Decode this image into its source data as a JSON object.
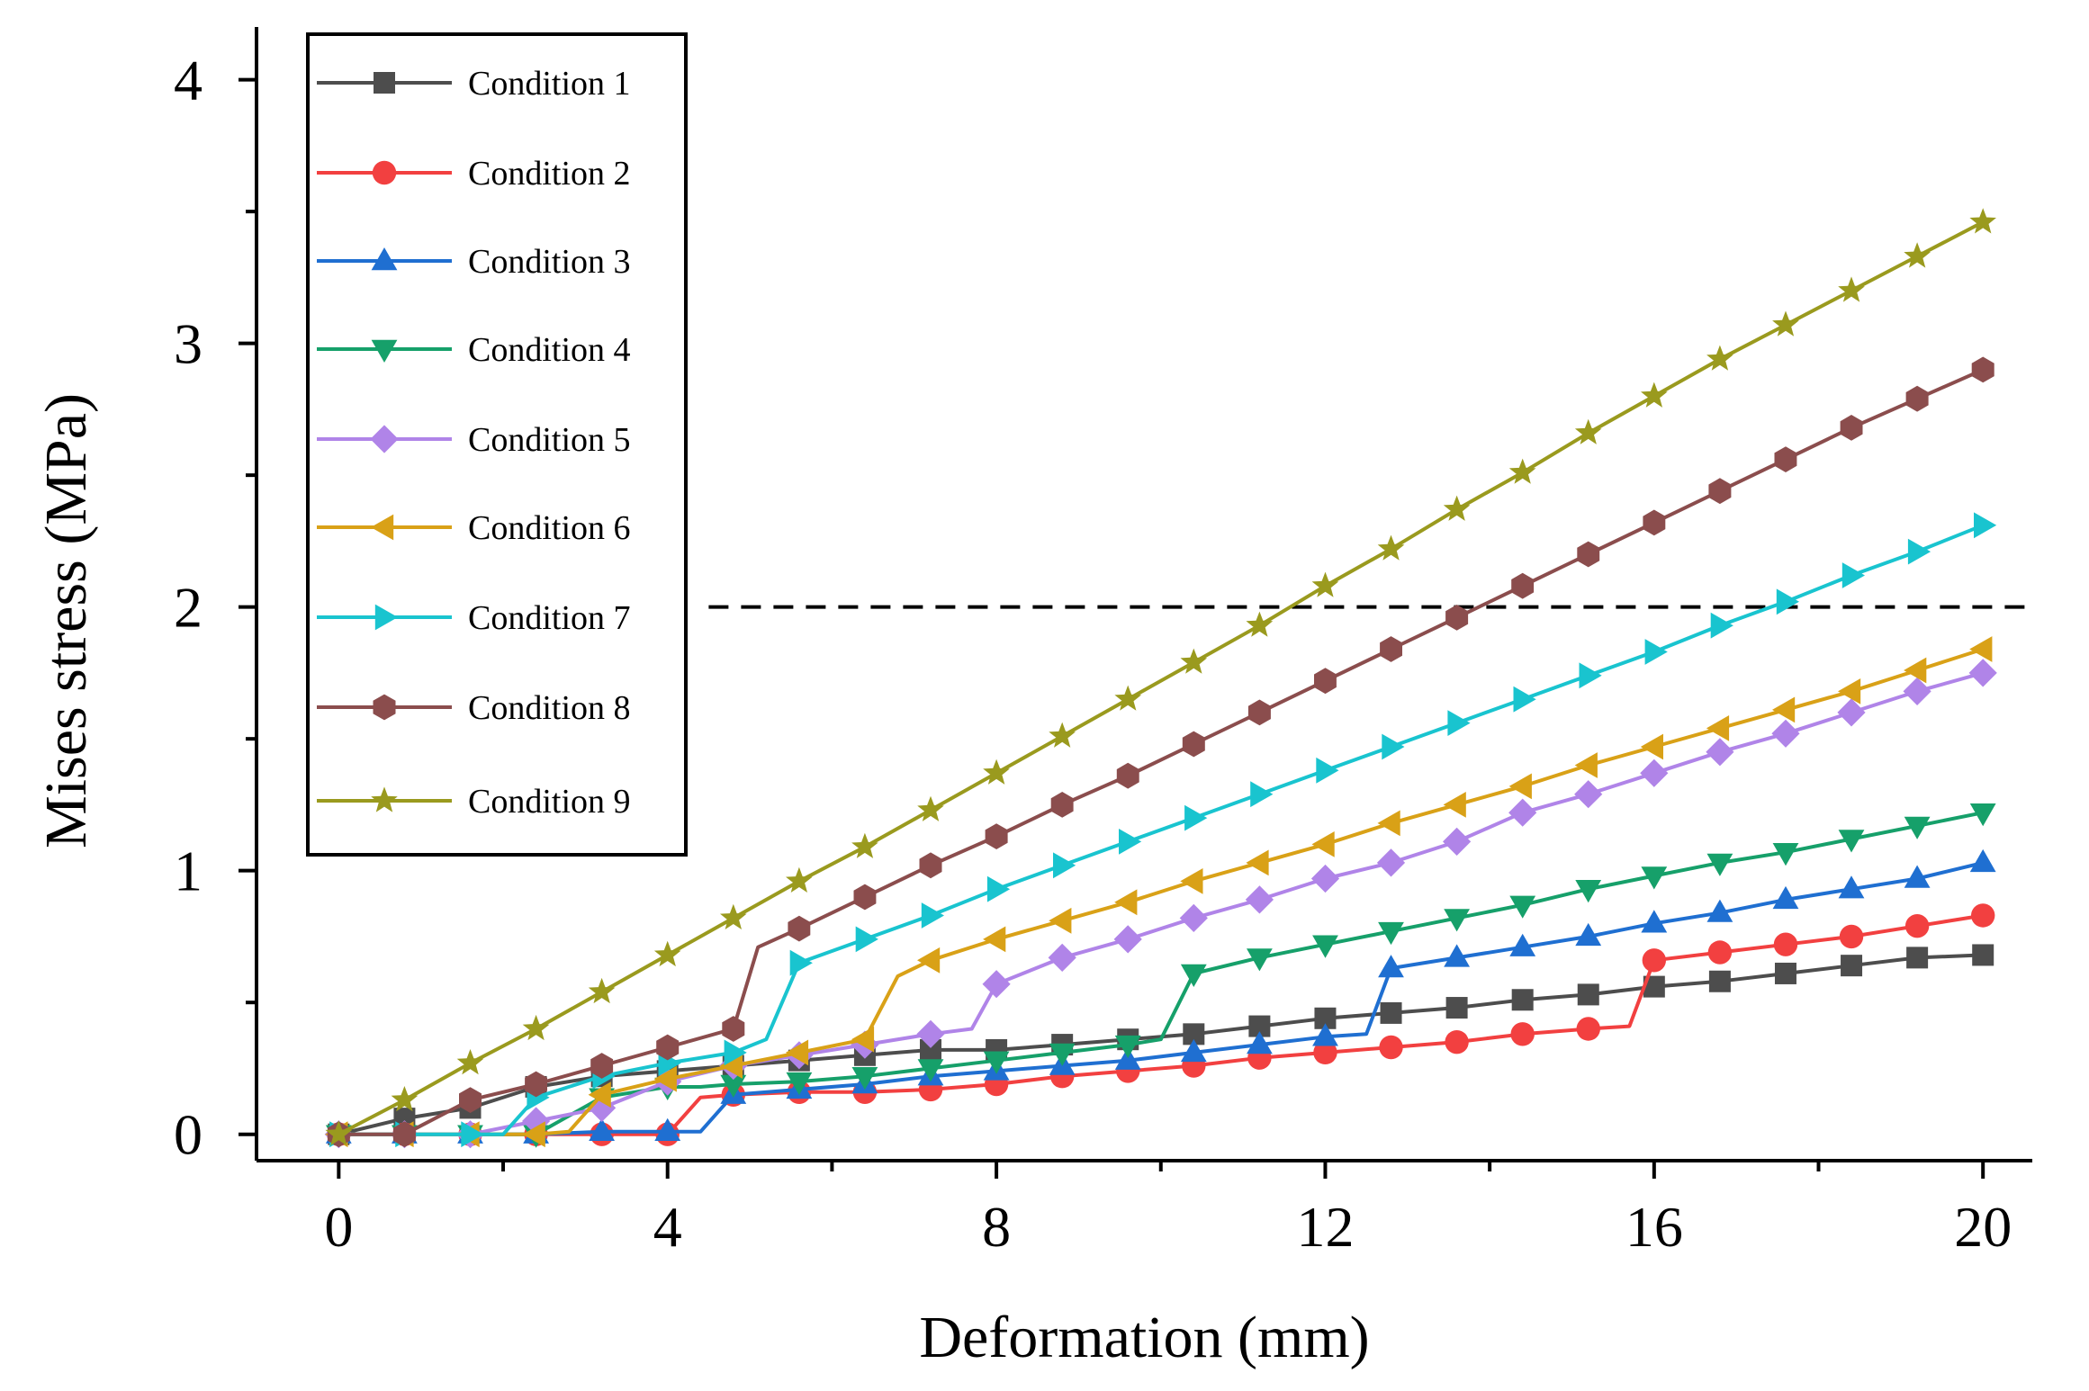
{
  "chart_data": {
    "type": "line",
    "xlabel": "Deformation (mm)",
    "ylabel": "Mises stress (MPa)",
    "xlim": [
      -1.0,
      20.6
    ],
    "ylim": [
      -0.1,
      4.2
    ],
    "x_ticks": [
      0,
      4,
      8,
      12,
      16,
      20
    ],
    "x_minor_ticks": [
      2,
      6,
      10,
      14,
      18
    ],
    "y_ticks": [
      0,
      1,
      2,
      3,
      4
    ],
    "y_minor_ticks": [
      0.5,
      1.5,
      2.5,
      3.5
    ],
    "reference_line": {
      "y": 2,
      "x_start": 4.5,
      "x_end": 20.6,
      "style": "dashed"
    },
    "legend_position": "top-left",
    "grid": false,
    "series": [
      {
        "name": "Condition 1",
        "color": "#4d4d4d",
        "marker": "square",
        "x": [
          0,
          0.8,
          1.6,
          2.4,
          3.2,
          4.0,
          4.8,
          5.6,
          6.4,
          7.2,
          8.0,
          8.8,
          9.6,
          10.4,
          11.2,
          12.0,
          12.8,
          13.6,
          14.4,
          15.2,
          16.0,
          16.8,
          17.6,
          18.4,
          19.2,
          20.0
        ],
        "y": [
          0,
          0.06,
          0.1,
          0.18,
          0.22,
          0.24,
          0.26,
          0.28,
          0.3,
          0.32,
          0.32,
          0.34,
          0.36,
          0.38,
          0.41,
          0.44,
          0.46,
          0.48,
          0.51,
          0.53,
          0.56,
          0.58,
          0.61,
          0.64,
          0.67,
          0.68
        ]
      },
      {
        "name": "Condition 2",
        "color": "#f24040",
        "marker": "circle",
        "x": [
          0,
          0.8,
          1.6,
          2.4,
          3.2,
          4.0,
          4.4,
          4.8,
          5.6,
          6.4,
          7.2,
          8.0,
          8.8,
          9.6,
          10.4,
          11.2,
          12.0,
          12.8,
          13.6,
          14.4,
          15.2,
          15.7,
          16.0,
          16.8,
          17.6,
          18.4,
          19.2,
          20.0
        ],
        "y": [
          0,
          0,
          0,
          0,
          0,
          0,
          0.14,
          0.15,
          0.16,
          0.16,
          0.17,
          0.19,
          0.22,
          0.24,
          0.26,
          0.29,
          0.31,
          0.33,
          0.35,
          0.38,
          0.4,
          0.41,
          0.66,
          0.69,
          0.72,
          0.75,
          0.79,
          0.83
        ]
      },
      {
        "name": "Condition 3",
        "color": "#1f6fd1",
        "marker": "triangle-up",
        "x": [
          0,
          0.8,
          1.6,
          2.4,
          3.2,
          4.0,
          4.4,
          4.8,
          5.6,
          6.4,
          7.2,
          8.0,
          8.8,
          9.6,
          10.4,
          11.2,
          12.0,
          12.5,
          12.8,
          13.6,
          14.4,
          15.2,
          16.0,
          16.8,
          17.6,
          18.4,
          19.2,
          20.0
        ],
        "y": [
          0,
          0,
          0,
          0,
          0.01,
          0.01,
          0.01,
          0.15,
          0.17,
          0.19,
          0.22,
          0.24,
          0.26,
          0.28,
          0.31,
          0.34,
          0.37,
          0.38,
          0.63,
          0.67,
          0.71,
          0.75,
          0.8,
          0.84,
          0.89,
          0.93,
          0.97,
          1.03
        ]
      },
      {
        "name": "Condition 4",
        "color": "#16a06a",
        "marker": "triangle-down",
        "x": [
          0,
          0.8,
          1.6,
          2.4,
          3.2,
          4.0,
          4.4,
          4.8,
          5.6,
          6.4,
          7.2,
          8.0,
          8.8,
          9.6,
          10.0,
          10.4,
          11.2,
          12.0,
          12.8,
          13.6,
          14.4,
          15.2,
          16.0,
          16.8,
          17.6,
          18.4,
          19.2,
          20.0
        ],
        "y": [
          0,
          0,
          0,
          0,
          0.14,
          0.18,
          0.18,
          0.19,
          0.2,
          0.22,
          0.25,
          0.28,
          0.31,
          0.34,
          0.36,
          0.61,
          0.67,
          0.72,
          0.77,
          0.82,
          0.87,
          0.93,
          0.98,
          1.03,
          1.07,
          1.12,
          1.17,
          1.22
        ]
      },
      {
        "name": "Condition 5",
        "color": "#b084e8",
        "marker": "diamond",
        "x": [
          0,
          0.8,
          1.6,
          2.4,
          3.2,
          4.0,
          4.8,
          5.6,
          6.4,
          7.2,
          7.7,
          8.0,
          8.8,
          9.6,
          10.4,
          11.2,
          12.0,
          12.8,
          13.6,
          14.4,
          15.2,
          16.0,
          16.8,
          17.6,
          18.4,
          19.2,
          20.0
        ],
        "y": [
          0,
          0,
          0,
          0.05,
          0.1,
          0.2,
          0.26,
          0.3,
          0.34,
          0.38,
          0.4,
          0.57,
          0.67,
          0.74,
          0.82,
          0.89,
          0.97,
          1.03,
          1.11,
          1.22,
          1.29,
          1.37,
          1.45,
          1.52,
          1.6,
          1.68,
          1.75
        ]
      },
      {
        "name": "Condition 6",
        "color": "#d9a117",
        "marker": "triangle-left",
        "x": [
          0,
          0.8,
          1.6,
          2.4,
          2.8,
          3.2,
          4.0,
          4.8,
          5.6,
          6.4,
          6.8,
          7.2,
          8.0,
          8.8,
          9.6,
          10.4,
          11.2,
          12.0,
          12.8,
          13.6,
          14.4,
          15.2,
          16.0,
          16.8,
          17.6,
          18.4,
          19.2,
          20.0
        ],
        "y": [
          0,
          0,
          0,
          0,
          0.01,
          0.15,
          0.21,
          0.26,
          0.31,
          0.36,
          0.6,
          0.66,
          0.74,
          0.81,
          0.88,
          0.96,
          1.03,
          1.1,
          1.18,
          1.25,
          1.32,
          1.4,
          1.47,
          1.54,
          1.61,
          1.68,
          1.76,
          1.84
        ]
      },
      {
        "name": "Condition 7",
        "color": "#19c4cf",
        "marker": "triangle-right",
        "x": [
          0,
          0.8,
          1.6,
          2.0,
          2.4,
          3.2,
          4.0,
          4.8,
          5.2,
          5.6,
          6.4,
          7.2,
          8.0,
          8.8,
          9.6,
          10.4,
          11.2,
          12.0,
          12.8,
          13.6,
          14.4,
          15.2,
          16.0,
          16.8,
          17.6,
          18.4,
          19.2,
          20.0
        ],
        "y": [
          0,
          0,
          0,
          0,
          0.14,
          0.22,
          0.27,
          0.31,
          0.36,
          0.65,
          0.74,
          0.83,
          0.93,
          1.02,
          1.11,
          1.2,
          1.29,
          1.38,
          1.47,
          1.56,
          1.65,
          1.74,
          1.83,
          1.93,
          2.02,
          2.12,
          2.21,
          2.31
        ]
      },
      {
        "name": "Condition 8",
        "color": "#8b4d4d",
        "marker": "hexagon",
        "x": [
          0,
          0.8,
          1.6,
          2.4,
          3.2,
          4.0,
          4.8,
          5.1,
          5.6,
          6.4,
          7.2,
          8.0,
          8.8,
          9.6,
          10.4,
          11.2,
          12.0,
          12.8,
          13.6,
          14.4,
          15.2,
          16.0,
          16.8,
          17.6,
          18.4,
          19.2,
          20.0
        ],
        "y": [
          0,
          0,
          0.13,
          0.19,
          0.26,
          0.33,
          0.4,
          0.71,
          0.78,
          0.9,
          1.02,
          1.13,
          1.25,
          1.36,
          1.48,
          1.6,
          1.72,
          1.84,
          1.96,
          2.08,
          2.2,
          2.32,
          2.44,
          2.56,
          2.68,
          2.79,
          2.9
        ]
      },
      {
        "name": "Condition 9",
        "color": "#9a9a1e",
        "marker": "star",
        "x": [
          0,
          0.8,
          1.6,
          2.4,
          3.2,
          4.0,
          4.8,
          5.6,
          6.4,
          7.2,
          8.0,
          8.8,
          9.6,
          10.4,
          11.2,
          12.0,
          12.8,
          13.6,
          14.4,
          15.2,
          16.0,
          16.8,
          17.6,
          18.4,
          19.2,
          20.0
        ],
        "y": [
          0,
          0.13,
          0.27,
          0.4,
          0.54,
          0.68,
          0.82,
          0.96,
          1.09,
          1.23,
          1.37,
          1.51,
          1.65,
          1.79,
          1.93,
          2.08,
          2.22,
          2.37,
          2.51,
          2.66,
          2.8,
          2.94,
          3.07,
          3.2,
          3.33,
          3.46
        ]
      }
    ]
  }
}
